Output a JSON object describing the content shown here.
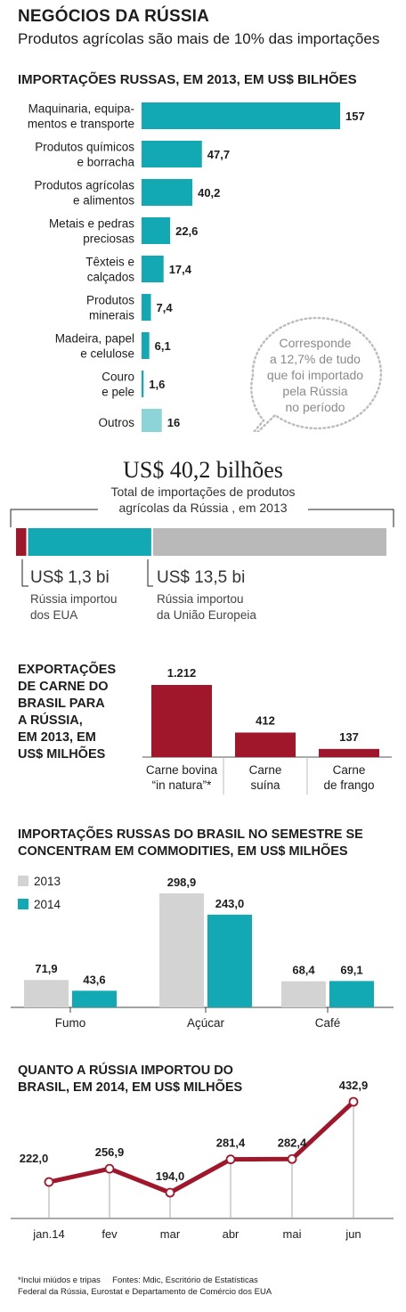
{
  "header": {
    "title": "NEGÓCIOS DA RÚSSIA",
    "subtitle": "Produtos agrícolas são mais de 10% das importações"
  },
  "colors": {
    "teal": "#12a8b4",
    "teal_light": "#8dd4d9",
    "red": "#a0162b",
    "gray": "#b9b9b9",
    "gray_light": "#d3d3d3"
  },
  "chart_data": [
    {
      "type": "bar",
      "orientation": "horizontal",
      "title": "IMPORTAÇÕES RUSSAS, EM 2013, EM US$ BILHÕES",
      "categories": [
        [
          "Maquinaria, equipa-",
          "mentos e transporte"
        ],
        [
          "Produtos químicos",
          "e borracha"
        ],
        [
          "Produtos agrícolas",
          "e alimentos"
        ],
        [
          "Metais e pedras",
          "preciosas"
        ],
        [
          "Têxteis e",
          "calçados"
        ],
        [
          "Produtos",
          "minerais"
        ],
        [
          "Madeira, papel",
          "e celulose"
        ],
        [
          "Couro",
          "e pele"
        ],
        [
          "Outros"
        ]
      ],
      "values": [
        157,
        47.7,
        40.2,
        22.6,
        17.4,
        7.4,
        6.1,
        1.6,
        16
      ],
      "value_labels": [
        "157",
        "47,7",
        "40,2",
        "22,6",
        "17,4",
        "7,4",
        "6,1",
        "1,6",
        "16"
      ],
      "annotation": [
        "Corresponde",
        "a 12,7% de tudo",
        "que foi importado",
        "pela Rússia",
        "no período"
      ]
    },
    {
      "type": "bar",
      "orientation": "stacked-horizontal",
      "title": "US$ 40,2 bilhões",
      "subtitle": [
        "Total de importações de produtos",
        "agrícolas da Rússia , em 2013"
      ],
      "total": 40.2,
      "segments": [
        {
          "value": 1.3,
          "label": "US$ 1,3 bi",
          "caption": [
            "Rússia importou",
            "dos EUA"
          ]
        },
        {
          "value": 13.5,
          "label": "US$ 13,5 bi",
          "caption": [
            "Rússia importou",
            "da União Europeia"
          ]
        },
        {
          "value": 25.4
        }
      ]
    },
    {
      "type": "bar",
      "title": [
        "EXPORTAÇÕES",
        "DE CARNE DO",
        "BRASIL PARA",
        "A RÚSSIA,",
        "EM 2013, EM",
        "US$ MILHÕES"
      ],
      "categories": [
        [
          "Carne bovina",
          "“in natura”*"
        ],
        [
          "Carne",
          "suína"
        ],
        [
          "Carne",
          "de frango"
        ]
      ],
      "values": [
        1212,
        412,
        137
      ],
      "value_labels": [
        "1.212",
        "412",
        "137"
      ]
    },
    {
      "type": "bar",
      "title": [
        "IMPORTAÇÕES RUSSAS DO BRASIL NO SEMESTRE SE",
        "CONCENTRAM EM COMMODITIES, EM US$ MILHÕES"
      ],
      "categories": [
        "Fumo",
        "Açúcar",
        "Café"
      ],
      "series": [
        {
          "name": "2013",
          "values": [
            71.9,
            298.9,
            68.4
          ],
          "value_labels": [
            "71,9",
            "298,9",
            "68,4"
          ]
        },
        {
          "name": "2014",
          "values": [
            43.6,
            243.0,
            69.1
          ],
          "value_labels": [
            "43,6",
            "243,0",
            "69,1"
          ]
        }
      ]
    },
    {
      "type": "line",
      "title": [
        "QUANTO A RÚSSIA IMPORTOU DO",
        "BRASIL, EM 2014, EM US$ MILHÕES"
      ],
      "categories": [
        "jan.14",
        "fev",
        "mar",
        "abr",
        "mai",
        "jun"
      ],
      "values": [
        222.0,
        256.9,
        194.0,
        281.4,
        282.4,
        432.9
      ],
      "value_labels": [
        "222,0",
        "256,9",
        "194,0",
        "281,4",
        "282,4",
        "432,9"
      ]
    }
  ],
  "footer": {
    "note": "*Inclui miúdos e tripas",
    "sources_line1": "Fontes: Mdic, Escritório de Estatísticas",
    "sources_line2": "Federal da Rússia, Eurostat e Departamento de Comércio dos EUA"
  }
}
